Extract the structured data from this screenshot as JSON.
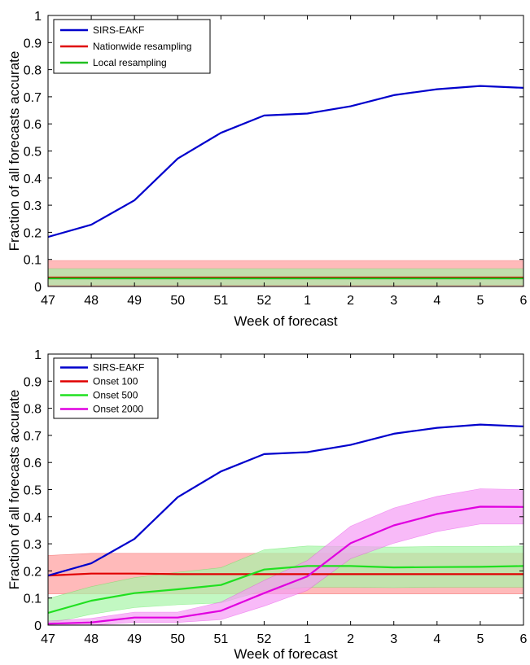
{
  "chart_data": [
    {
      "type": "line",
      "x_categories": [
        "47",
        "48",
        "49",
        "50",
        "51",
        "52",
        "1",
        "2",
        "3",
        "4",
        "5",
        "6"
      ],
      "xlabel": "Week of forecast",
      "ylabel": "Fraction of all forecasts accurate",
      "ylim": [
        0,
        1
      ],
      "yticks": [
        "0",
        "0.1",
        "0.2",
        "0.3",
        "0.4",
        "0.5",
        "0.6",
        "0.7",
        "0.8",
        "0.9",
        "1"
      ],
      "grid": false,
      "legend_position": "top-left",
      "series": [
        {
          "name": "SIRS-EAKF",
          "color": "#0000cc",
          "values": [
            0.183,
            0.228,
            0.318,
            0.472,
            0.567,
            0.631,
            0.638,
            0.665,
            0.706,
            0.728,
            0.74,
            0.733
          ]
        },
        {
          "name": "Nationwide resampling",
          "color": "#e00000",
          "band_color": "#ff9d9d",
          "values": [
            0.033,
            0.033,
            0.033,
            0.033,
            0.033,
            0.033,
            0.033,
            0.033,
            0.033,
            0.033,
            0.033,
            0.033
          ],
          "lower": [
            0,
            0,
            0,
            0,
            0,
            0,
            0,
            0,
            0,
            0,
            0,
            0
          ],
          "upper": [
            0.096,
            0.096,
            0.096,
            0.096,
            0.096,
            0.096,
            0.096,
            0.096,
            0.096,
            0.096,
            0.096,
            0.096
          ]
        },
        {
          "name": "Local resampling",
          "color": "#20c020",
          "band_color": "#a8eca8",
          "values": [
            0.03,
            0.03,
            0.03,
            0.03,
            0.03,
            0.03,
            0.03,
            0.03,
            0.03,
            0.03,
            0.03,
            0.03
          ],
          "lower": [
            0.005,
            0.005,
            0.005,
            0.005,
            0.005,
            0.005,
            0.005,
            0.005,
            0.005,
            0.005,
            0.005,
            0.005
          ],
          "upper": [
            0.066,
            0.066,
            0.066,
            0.066,
            0.066,
            0.066,
            0.066,
            0.066,
            0.066,
            0.066,
            0.066,
            0.066
          ]
        }
      ]
    },
    {
      "type": "line",
      "x_categories": [
        "47",
        "48",
        "49",
        "50",
        "51",
        "52",
        "1",
        "2",
        "3",
        "4",
        "5",
        "6"
      ],
      "xlabel": "Week of forecast",
      "ylabel": "Fraction of all forecasts accurate",
      "ylim": [
        0,
        1
      ],
      "yticks": [
        "0",
        "0.1",
        "0.2",
        "0.3",
        "0.4",
        "0.5",
        "0.6",
        "0.7",
        "0.8",
        "0.9",
        "1"
      ],
      "grid": false,
      "legend_position": "top-left",
      "series": [
        {
          "name": "SIRS-EAKF",
          "color": "#0000cc",
          "values": [
            0.183,
            0.228,
            0.318,
            0.472,
            0.567,
            0.631,
            0.638,
            0.665,
            0.706,
            0.728,
            0.74,
            0.733
          ]
        },
        {
          "name": "Onset 100",
          "color": "#e00000",
          "band_color": "#ff9d9d",
          "values": [
            0.183,
            0.19,
            0.19,
            0.188,
            0.188,
            0.188,
            0.188,
            0.188,
            0.188,
            0.188,
            0.188,
            0.188
          ],
          "lower": [
            0.115,
            0.115,
            0.115,
            0.115,
            0.115,
            0.115,
            0.115,
            0.115,
            0.115,
            0.115,
            0.115,
            0.115
          ],
          "upper": [
            0.257,
            0.265,
            0.265,
            0.265,
            0.265,
            0.265,
            0.265,
            0.265,
            0.265,
            0.265,
            0.265,
            0.265
          ]
        },
        {
          "name": "Onset 500",
          "color": "#20e020",
          "band_color": "#a8f5a8",
          "values": [
            0.045,
            0.09,
            0.118,
            0.132,
            0.148,
            0.205,
            0.218,
            0.218,
            0.213,
            0.214,
            0.215,
            0.218
          ],
          "lower": [
            0.005,
            0.04,
            0.065,
            0.075,
            0.082,
            0.128,
            0.14,
            0.14,
            0.138,
            0.14,
            0.14,
            0.14
          ],
          "upper": [
            0.098,
            0.142,
            0.175,
            0.195,
            0.212,
            0.278,
            0.292,
            0.29,
            0.288,
            0.29,
            0.29,
            0.292
          ]
        },
        {
          "name": "Onset 2000",
          "color": "#e000e0",
          "band_color": "#f59cf5",
          "values": [
            0.005,
            0.01,
            0.028,
            0.028,
            0.053,
            0.118,
            0.18,
            0.302,
            0.368,
            0.41,
            0.437,
            0.436
          ],
          "lower": [
            0.0,
            0.0,
            0.01,
            0.01,
            0.02,
            0.07,
            0.128,
            0.245,
            0.302,
            0.345,
            0.373,
            0.373
          ],
          "upper": [
            0.015,
            0.025,
            0.048,
            0.048,
            0.085,
            0.165,
            0.238,
            0.365,
            0.432,
            0.475,
            0.503,
            0.5
          ]
        }
      ]
    }
  ]
}
